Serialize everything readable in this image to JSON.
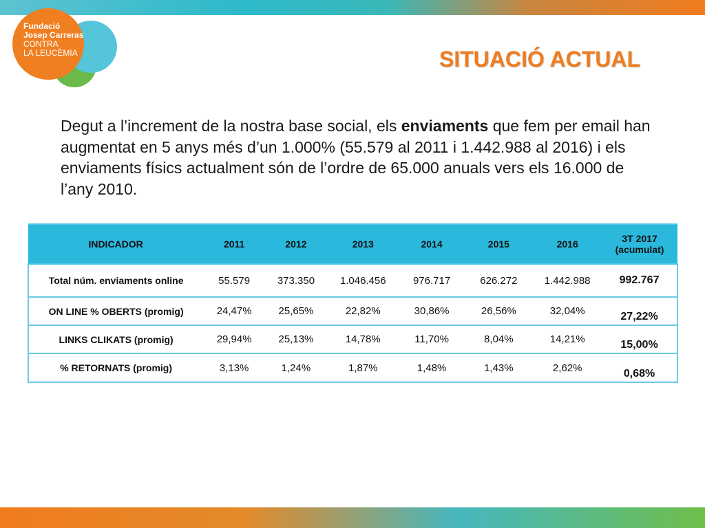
{
  "logo": {
    "line1": "Fundació",
    "line2": "Josep Carreras",
    "line3": "CONTRA",
    "line4": "LA LEUCÈMIA"
  },
  "title": "SITUACIÓ ACTUAL",
  "intro": {
    "before": "Degut a l’increment de la nostra base social, els ",
    "bold": "enviaments",
    "after": " que fem per email han augmentat en 5 anys més d’un 1.000% (55.579 al 2011 i 1.442.988 al 2016) i els enviaments físics actualment són de l’ordre de 65.000 anuals vers els 16.000 de l’any 2010."
  },
  "table": {
    "headers": [
      "INDICADOR",
      "2011",
      "2012",
      "2013",
      "2014",
      "2015",
      "2016",
      "3T 2017",
      "(acumulat)"
    ],
    "rows": [
      [
        "Total núm. enviaments online",
        "55.579",
        "373.350",
        "1.046.456",
        "976.717",
        "626.272",
        "1.442.988",
        "992.767"
      ],
      [
        "ON LINE % OBERTS (promig)",
        "24,47%",
        "25,65%",
        "22,82%",
        "30,86%",
        "26,56%",
        "32,04%",
        "27,22%"
      ],
      [
        "LINKS CLIKATS (promig)",
        "29,94%",
        "25,13%",
        "14,78%",
        "11,70%",
        "8,04%",
        "14,21%",
        "15,00%"
      ],
      [
        "% RETORNATS (promig)",
        "3,13%",
        "1,24%",
        "1,87%",
        "1,48%",
        "1,43%",
        "2,62%",
        "0,68%"
      ]
    ]
  },
  "colors": {
    "accent_orange": "#f07c1e",
    "table_header": "#2ab8dc",
    "logo_green": "#6ab94a",
    "logo_cyan": "#55c5d9"
  }
}
